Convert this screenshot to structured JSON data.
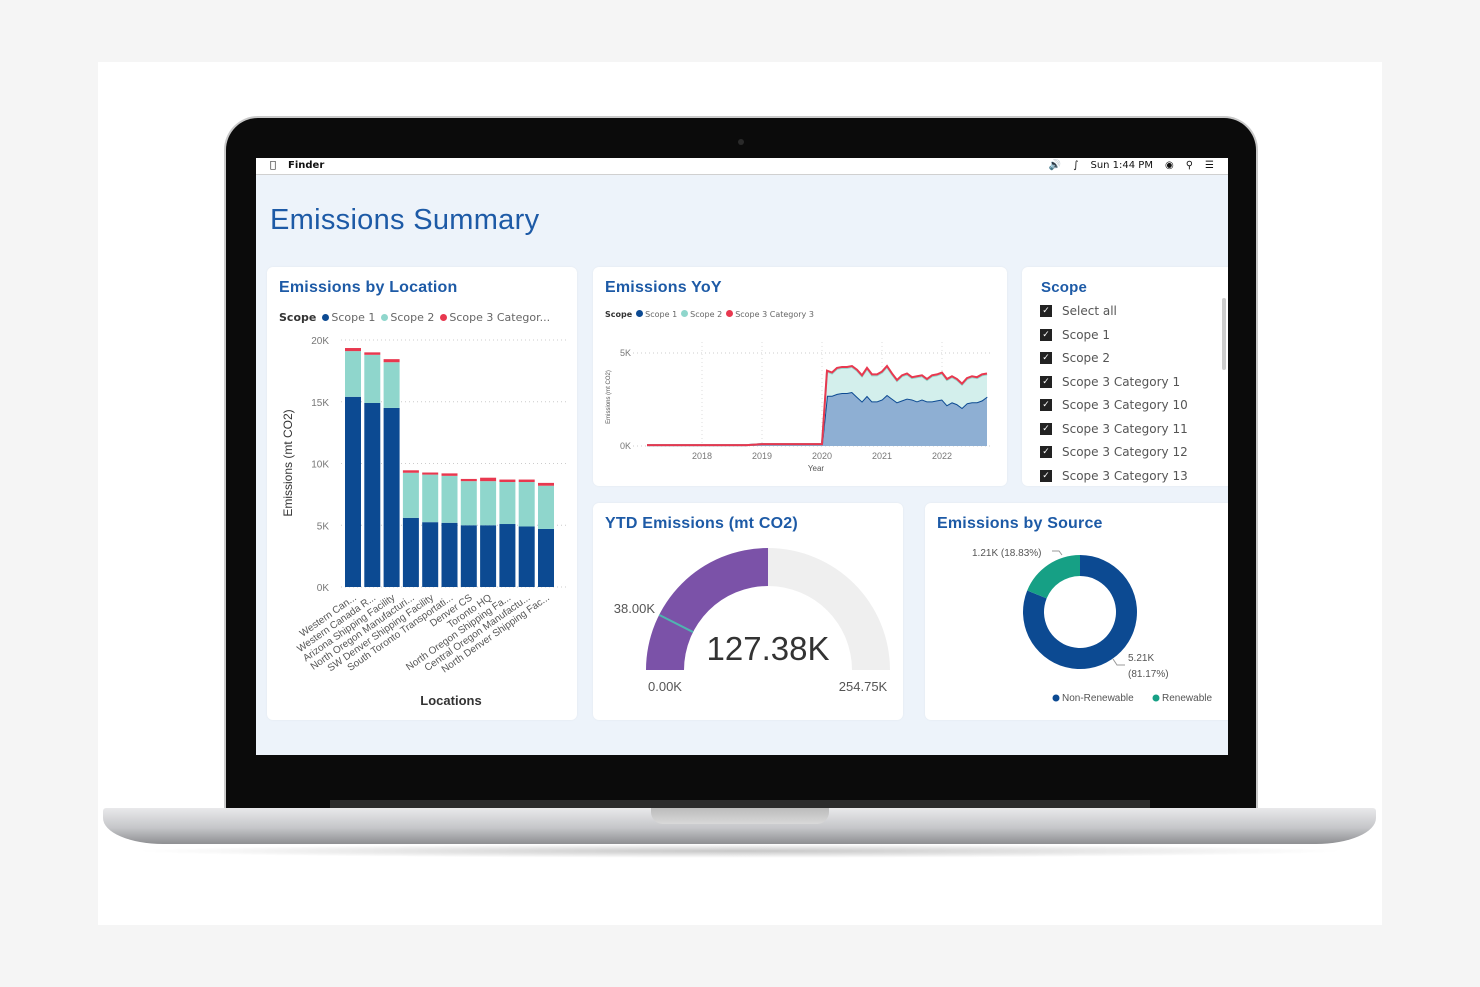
{
  "menubar": {
    "app": "Finder",
    "clock": "Sun 1:44 PM",
    "icons": [
      "apple-icon",
      "volume-icon",
      "bluetooth-icon",
      "wifi-icon",
      "search-icon",
      "list-icon"
    ]
  },
  "dashboard": {
    "title": "Emissions Summary"
  },
  "colors": {
    "scope1": "#0c4a92",
    "scope2": "#8fd6cc",
    "scope3": "#e8384f",
    "gauge_fill": "#7b52a8",
    "gauge_bg": "#efefef",
    "target": "#4fb4b0",
    "renewable": "#16a085",
    "non_renewable": "#0c4a92",
    "title": "#1d5aa6"
  },
  "location_card": {
    "title": "Emissions by Location",
    "legend_title": "Scope",
    "legend": [
      "Scope 1",
      "Scope 2",
      "Scope 3 Categor..."
    ]
  },
  "yoy_card": {
    "title": "Emissions YoY",
    "legend_title": "Scope",
    "legend": [
      "Scope 1",
      "Scope 2",
      "Scope 3 Category 3"
    ]
  },
  "scope_slicer": {
    "title": "Scope",
    "items": [
      {
        "label": "Select all",
        "checked": true
      },
      {
        "label": "Scope 1",
        "checked": true
      },
      {
        "label": "Scope 2",
        "checked": true
      },
      {
        "label": "Scope 3 Category 1",
        "checked": true
      },
      {
        "label": "Scope 3 Category 10",
        "checked": true
      },
      {
        "label": "Scope 3 Category 11",
        "checked": true
      },
      {
        "label": "Scope 3 Category 12",
        "checked": true
      },
      {
        "label": "Scope 3 Category 13",
        "checked": true
      }
    ]
  },
  "ytd_card": {
    "title": "YTD Emissions (mt CO2)"
  },
  "source_card": {
    "title": "Emissions by Source"
  },
  "chart_data": [
    {
      "type": "bar",
      "stacked": true,
      "xlabel": "Locations",
      "ylabel": "Emissions (mt CO2)",
      "ylim": [
        0,
        20000
      ],
      "yticks": [
        "0K",
        "5K",
        "10K",
        "15K",
        "20K"
      ],
      "grid": true,
      "legend_placement": "top-left",
      "categories": [
        "Western Can...",
        "Western Canada R...",
        "Arizona Shipping Facility",
        "North Oregon Manufacturi...",
        "SW Denver Shipping Facility",
        "South Toronto Transportati...",
        "Denver CS",
        "Toronto HQ",
        "North Oregon Shipping Fa...",
        "Central Oregon Manufactu...",
        "North Denver Shipping Fac..."
      ],
      "series": [
        {
          "name": "Scope 1",
          "values": [
            15400,
            14900,
            14500,
            5600,
            5250,
            5200,
            5000,
            5000,
            5100,
            4900,
            4700
          ]
        },
        {
          "name": "Scope 2",
          "values": [
            3700,
            3900,
            3700,
            3650,
            3850,
            3800,
            3570,
            3570,
            3400,
            3600,
            3500
          ]
        },
        {
          "name": "Scope 3 Categor...",
          "values": [
            250,
            200,
            250,
            200,
            170,
            200,
            180,
            280,
            200,
            200,
            230
          ]
        }
      ]
    },
    {
      "type": "area",
      "stacked": true,
      "xlabel": "Year",
      "ylabel": "Emissions (mt CO2)",
      "xticks": [
        "2018",
        "2019",
        "2020",
        "2021",
        "2022"
      ],
      "yticks": [
        "0K",
        "5K"
      ],
      "ylim": [
        0,
        5000
      ],
      "grid": true,
      "legend_placement": "top-left",
      "x": [
        "2017-02",
        "2017-06",
        "2017-10",
        "2018-02",
        "2018-06",
        "2018-10",
        "2019-01",
        "2019-06",
        "2019-12",
        "2020-01",
        "2020-02",
        "2020-03",
        "2020-04",
        "2020-05",
        "2020-06",
        "2020-07",
        "2020-08",
        "2020-09",
        "2020-10",
        "2020-11",
        "2020-12",
        "2021-01",
        "2021-02",
        "2021-03",
        "2021-04",
        "2021-05",
        "2021-06",
        "2021-07",
        "2021-08",
        "2021-09",
        "2021-10",
        "2021-11",
        "2021-12",
        "2022-01",
        "2022-02",
        "2022-03",
        "2022-04",
        "2022-05",
        "2022-06",
        "2022-07",
        "2022-08",
        "2022-09",
        "2022-10"
      ],
      "series": [
        {
          "name": "Scope 1",
          "values": [
            50,
            50,
            50,
            50,
            50,
            50,
            100,
            100,
            100,
            100,
            2700,
            2700,
            2800,
            2850,
            2850,
            2900,
            2650,
            2400,
            2700,
            2400,
            2400,
            2500,
            2750,
            2550,
            2350,
            2450,
            2550,
            2500,
            2400,
            2500,
            2400,
            2400,
            2450,
            2500,
            2200,
            2350,
            2250,
            2050,
            2300,
            2350,
            2350,
            2450,
            2650
          ]
        },
        {
          "name": "Scope 2",
          "values": [
            0,
            0,
            0,
            0,
            0,
            0,
            0,
            0,
            0,
            0,
            1300,
            1200,
            1350,
            1350,
            1350,
            1350,
            1400,
            1350,
            1450,
            1400,
            1400,
            1450,
            1500,
            1300,
            1150,
            1300,
            1300,
            1150,
            1300,
            1250,
            1150,
            1350,
            1350,
            1400,
            1350,
            1350,
            1300,
            1250,
            1300,
            1350,
            1300,
            1350,
            1200
          ]
        },
        {
          "name": "Scope 3 Category 3",
          "values": [
            0,
            0,
            0,
            0,
            0,
            0,
            0,
            0,
            0,
            0,
            50,
            50,
            50,
            50,
            50,
            50,
            50,
            50,
            50,
            50,
            50,
            50,
            50,
            50,
            50,
            50,
            50,
            50,
            50,
            50,
            50,
            50,
            50,
            50,
            50,
            50,
            50,
            50,
            50,
            50,
            50,
            50,
            50
          ]
        }
      ]
    },
    {
      "type": "gauge",
      "value": 127380,
      "value_label": "127.38K",
      "min": 0,
      "min_label": "0.00K",
      "max": 254750,
      "max_label": "254.75K",
      "target": 38000,
      "target_label": "38.00K"
    },
    {
      "type": "pie",
      "donut": true,
      "legend_placement": "bottom-right",
      "slices": [
        {
          "name": "Non-Renewable",
          "value": 5210,
          "label": "5.21K",
          "pct_label": "(81.17%)"
        },
        {
          "name": "Renewable",
          "value": 1210,
          "label": "1.21K (18.83%)"
        }
      ]
    }
  ]
}
